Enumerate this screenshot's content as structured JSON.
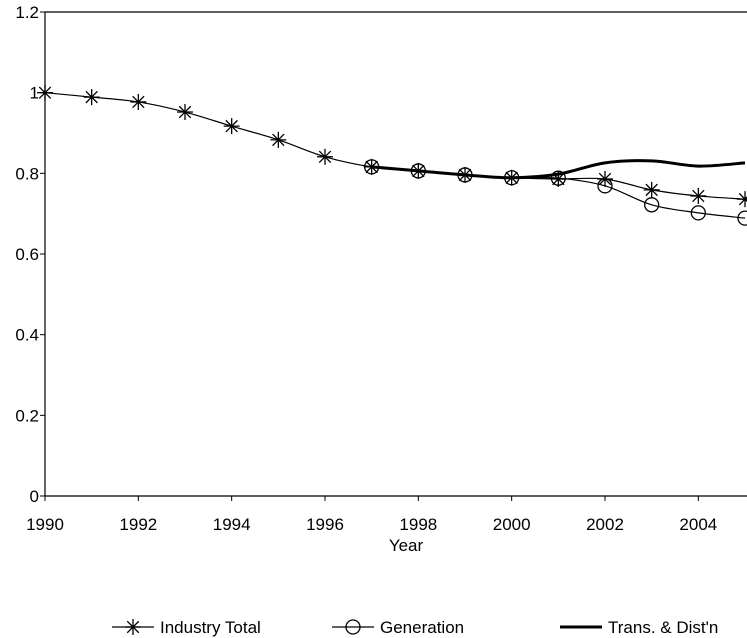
{
  "chart_data": {
    "type": "line",
    "x_label": "Year",
    "x": [
      1990,
      1991,
      1992,
      1993,
      1994,
      1995,
      1996,
      1997,
      1998,
      1999,
      2000,
      2001,
      2002,
      2003,
      2004,
      2005
    ],
    "series": [
      {
        "name": "Industry Total",
        "color": "#000000",
        "marker": "asterisk",
        "values": [
          1.0,
          0.989,
          0.977,
          0.952,
          0.917,
          0.883,
          0.841,
          0.816,
          0.806,
          0.796,
          0.789,
          0.786,
          0.786,
          0.759,
          0.744,
          0.736
        ]
      },
      {
        "name": "Generation",
        "color": "#000000",
        "marker": "circle",
        "values": [
          null,
          null,
          null,
          null,
          null,
          null,
          null,
          0.816,
          0.806,
          0.796,
          0.789,
          0.788,
          0.769,
          0.722,
          0.702,
          0.689
        ]
      },
      {
        "name": "Trans. & Dist'n",
        "color": "#000000",
        "marker": "none",
        "values": [
          null,
          null,
          null,
          null,
          null,
          null,
          null,
          0.816,
          0.806,
          0.796,
          0.789,
          0.798,
          0.826,
          0.831,
          0.818,
          0.826
        ]
      }
    ],
    "xlim": [
      1990,
      2005
    ],
    "xticks": [
      1990,
      1992,
      1994,
      1996,
      1998,
      2000,
      2002,
      2004
    ],
    "ylim": [
      0,
      1.2
    ],
    "yticks": [
      0,
      0.2,
      0.4,
      0.6,
      0.8,
      1,
      1.2
    ]
  }
}
